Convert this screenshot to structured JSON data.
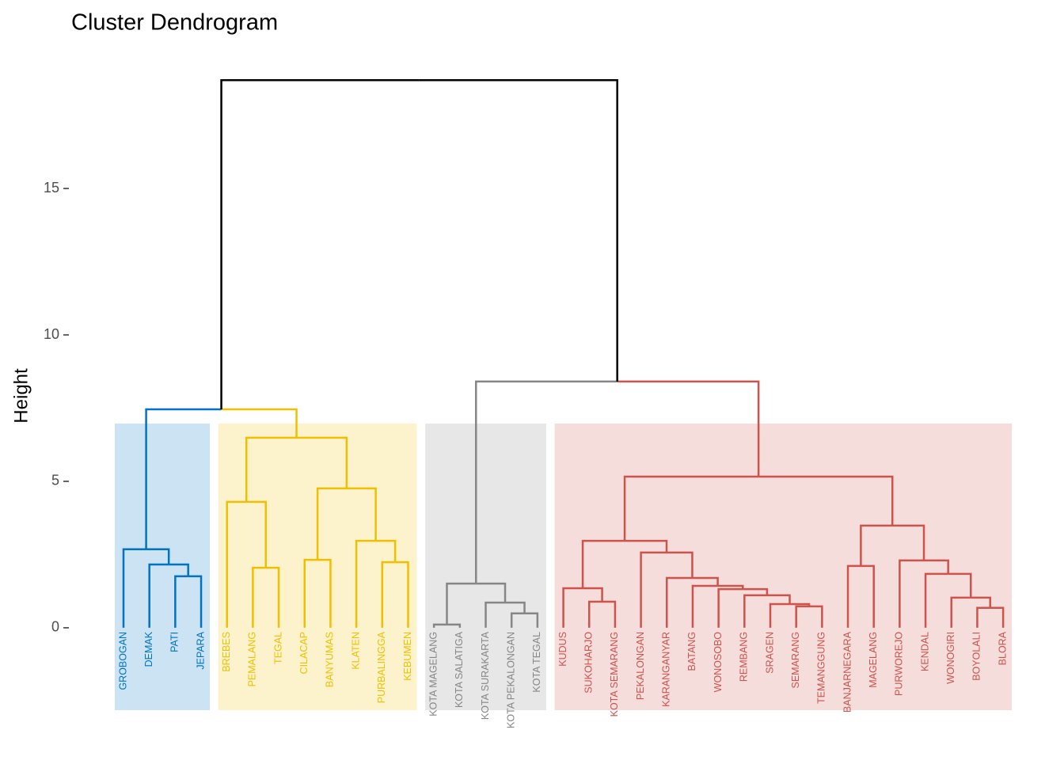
{
  "chart_data": {
    "type": "dendrogram",
    "title": "Cluster Dendrogram",
    "y_label": "Height",
    "ylim": [
      -4.3,
      19.3
    ],
    "yticks": [
      0,
      5,
      10,
      15
    ],
    "link_color": "#000000",
    "tree": {
      "height": 18.7,
      "children": [
        {
          "height": 7.46,
          "children": [
            {
              "color": "#0073C2",
              "height": 2.68,
              "children": [
                {
                  "label": "GROBOGAN"
                },
                {
                  "height": 2.16,
                  "children": [
                    {
                      "label": "DEMAK"
                    },
                    {
                      "height": 1.76,
                      "children": [
                        {
                          "label": "PATI"
                        },
                        {
                          "label": "JEPARA"
                        }
                      ]
                    }
                  ]
                }
              ]
            },
            {
              "color": "#EFC000",
              "height": 6.49,
              "children": [
                {
                  "height": 4.3,
                  "children": [
                    {
                      "label": "BREBES"
                    },
                    {
                      "height": 2.05,
                      "children": [
                        {
                          "label": "PEMALANG"
                        },
                        {
                          "label": "TEGAL"
                        }
                      ]
                    }
                  ]
                },
                {
                  "height": 4.76,
                  "children": [
                    {
                      "height": 2.32,
                      "children": [
                        {
                          "label": "CILACAP"
                        },
                        {
                          "label": "BANYUMAS"
                        }
                      ]
                    },
                    {
                      "height": 2.97,
                      "children": [
                        {
                          "label": "KLATEN"
                        },
                        {
                          "height": 2.24,
                          "children": [
                            {
                              "label": "PURBALINGGA"
                            },
                            {
                              "label": "KEBUMEN"
                            }
                          ]
                        }
                      ]
                    }
                  ]
                }
              ]
            }
          ]
        },
        {
          "height": 8.41,
          "children": [
            {
              "color": "#868686",
              "height": 1.51,
              "children": [
                {
                  "height": 0.11,
                  "children": [
                    {
                      "label": "KOTA MAGELANG"
                    },
                    {
                      "label": "KOTA SALATIGA"
                    }
                  ]
                },
                {
                  "height": 0.86,
                  "children": [
                    {
                      "label": "KOTA SURAKARTA"
                    },
                    {
                      "height": 0.49,
                      "children": [
                        {
                          "label": "KOTA PEKALONGAN"
                        },
                        {
                          "label": "KOTA TEGAL"
                        }
                      ]
                    }
                  ]
                }
              ]
            },
            {
              "color": "#CD534C",
              "height": 5.16,
              "children": [
                {
                  "height": 2.97,
                  "children": [
                    {
                      "height": 1.35,
                      "children": [
                        {
                          "label": "KUDUS"
                        },
                        {
                          "height": 0.89,
                          "children": [
                            {
                              "label": "SUKOHARJO"
                            },
                            {
                              "label": "KOTA SEMARANG"
                            }
                          ]
                        }
                      ]
                    },
                    {
                      "height": 2.57,
                      "children": [
                        {
                          "label": "PEKALONGAN"
                        },
                        {
                          "height": 1.7,
                          "children": [
                            {
                              "label": "KARANGANYAR"
                            },
                            {
                              "height": 1.43,
                              "children": [
                                {
                                  "label": "BATANG"
                                },
                                {
                                  "height": 1.32,
                                  "children": [
                                    {
                                      "label": "WONOSOBO"
                                    },
                                    {
                                      "height": 1.11,
                                      "children": [
                                        {
                                          "label": "REMBANG"
                                        },
                                        {
                                          "height": 0.81,
                                          "children": [
                                            {
                                              "label": "SRAGEN"
                                            },
                                            {
                                              "height": 0.73,
                                              "children": [
                                                {
                                                  "label": "SEMARANG"
                                                },
                                                {
                                                  "label": "TEMANGGUNG"
                                                }
                                              ]
                                            }
                                          ]
                                        }
                                      ]
                                    }
                                  ]
                                }
                              ]
                            }
                          ]
                        }
                      ]
                    }
                  ]
                },
                {
                  "height": 3.49,
                  "children": [
                    {
                      "height": 2.11,
                      "children": [
                        {
                          "label": "BANJARNEGARA"
                        },
                        {
                          "label": "MAGELANG"
                        }
                      ]
                    },
                    {
                      "height": 2.3,
                      "children": [
                        {
                          "label": "PURWOREJO"
                        },
                        {
                          "height": 1.84,
                          "children": [
                            {
                              "label": "KENDAL"
                            },
                            {
                              "height": 1.03,
                              "children": [
                                {
                                  "label": "WONOGIRI"
                                },
                                {
                                  "height": 0.68,
                                  "children": [
                                    {
                                      "label": "BOYOLALI"
                                    },
                                    {
                                      "label": "BLORA"
                                    }
                                  ]
                                }
                              ]
                            }
                          ]
                        }
                      ]
                    }
                  ]
                }
              ]
            }
          ]
        }
      ]
    }
  }
}
